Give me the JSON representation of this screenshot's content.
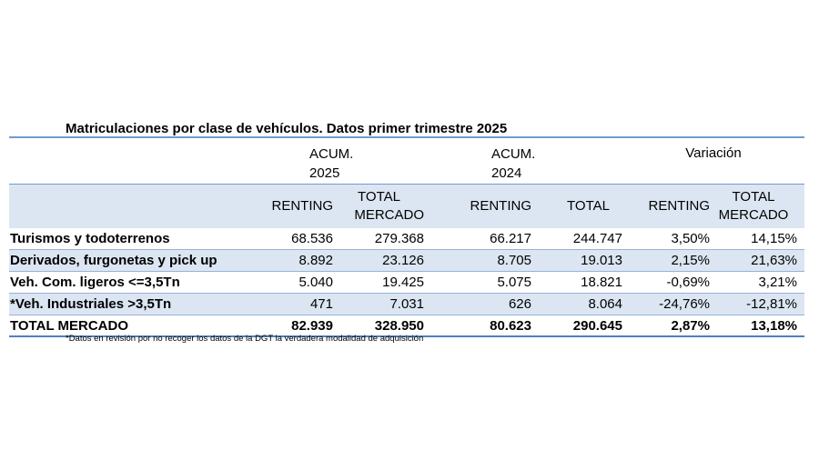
{
  "title": "Matriculaciones por clase de vehículos. Datos primer trimestre 2025",
  "header_top": {
    "acum_2025_line1": "ACUM.",
    "acum_2025_line2": "2025",
    "acum_2024_line1": "ACUM.",
    "acum_2024_line2": "2024",
    "variacion": "Variación"
  },
  "header_sub": {
    "renting_2025": "RENTING",
    "total_2025_line1": "TOTAL",
    "total_2025_line2": "MERCADO",
    "renting_2024": "RENTING",
    "total_2024": "TOTAL",
    "renting_var": "RENTING",
    "total_var_line1": "TOTAL",
    "total_var_line2": "MERCADO"
  },
  "rows": [
    {
      "label": "Turismos y todoterrenos",
      "r2025": "68.536",
      "t2025": "279.368",
      "r2024": "66.217",
      "t2024": "244.747",
      "vr": "3,50%",
      "vt": "14,15%"
    },
    {
      "label": "Derivados, furgonetas y pick up",
      "r2025": "8.892",
      "t2025": "23.126",
      "r2024": "8.705",
      "t2024": "19.013",
      "vr": "2,15%",
      "vt": "21,63%"
    },
    {
      "label": "Veh. Com. ligeros <=3,5Tn",
      "r2025": "5.040",
      "t2025": "19.425",
      "r2024": "5.075",
      "t2024": "18.821",
      "vr": "-0,69%",
      "vt": "3,21%"
    },
    {
      "label": "*Veh. Industriales >3,5Tn",
      "r2025": "471",
      "t2025": "7.031",
      "r2024": "626",
      "t2024": "8.064",
      "vr": "-24,76%",
      "vt": "-12,81%"
    }
  ],
  "total": {
    "label": "TOTAL MERCADO",
    "r2025": "82.939",
    "t2025": "328.950",
    "r2024": "80.623",
    "t2024": "290.645",
    "vr": "2,87%",
    "vt": "13,18%"
  },
  "footnote": "*Datos en revisión por no recoger los datos de la DGT la verdadera modalidad de adquisición",
  "colors": {
    "header_fill": "#dce6f2",
    "rule": "#4f81bd"
  }
}
